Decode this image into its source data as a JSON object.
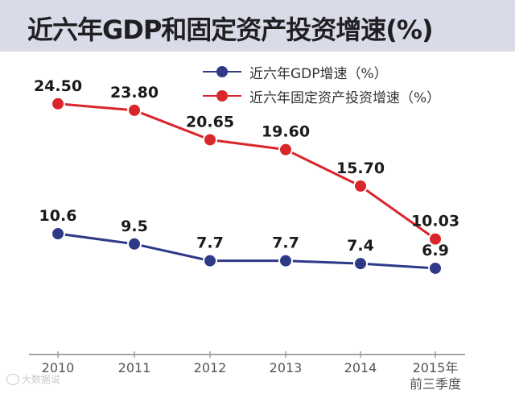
{
  "page": {
    "title": "近六年GDP和固定资产投资增速(%)"
  },
  "watermark": "大数据说",
  "chart_data": {
    "type": "line",
    "title": "近六年GDP和固定资产投资增速(%)",
    "categories": [
      "2010",
      "2011",
      "2012",
      "2013",
      "2014",
      "2015年\n前三季度"
    ],
    "category_lines": [
      [
        "2010"
      ],
      [
        "2011"
      ],
      [
        "2012"
      ],
      [
        "2013"
      ],
      [
        "2014"
      ],
      [
        "2015年",
        "前三季度"
      ]
    ],
    "series": [
      {
        "name": "近六年GDP增速（%）",
        "color": "#2e3a87",
        "values": [
          10.6,
          9.5,
          7.7,
          7.7,
          7.4,
          6.9
        ],
        "labels": [
          "10.6",
          "9.5",
          "7.7",
          "7.7",
          "7.4",
          "6.9"
        ]
      },
      {
        "name": "近六年固定资产投资增速（%）",
        "color": "#d9262a",
        "values": [
          24.5,
          23.8,
          20.65,
          19.6,
          15.7,
          10.03
        ],
        "labels": [
          "24.50",
          "23.80",
          "20.65",
          "19.60",
          "15.70",
          "10.03"
        ]
      }
    ],
    "xlabel": "",
    "ylabel": "",
    "ylim": [
      0,
      26
    ],
    "legend": "top-right",
    "grid": false
  }
}
